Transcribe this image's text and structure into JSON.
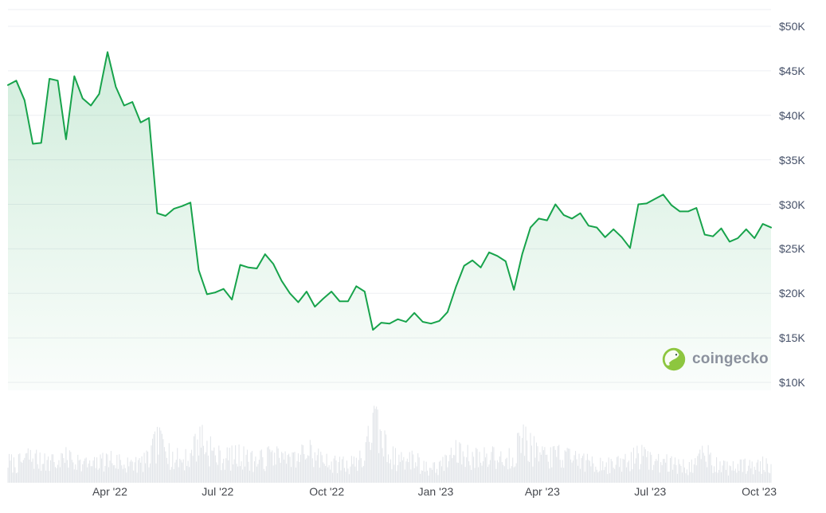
{
  "watermark": {
    "brand": "coingecko"
  },
  "colors": {
    "line": "#17a34b",
    "area_top": "rgba(25,165,80,0.20)",
    "area_bottom": "rgba(25,165,80,0.02)",
    "grid": "#edeff3",
    "volume": "#e3e6ea",
    "y_label": "#455068",
    "x_label": "#45484e",
    "logo_green": "#8dc63f",
    "watermark_text": "#8b919d"
  },
  "chart_data": {
    "type": "line",
    "title": "",
    "legend": "none",
    "grid": "horizontal",
    "y_axis_side": "right",
    "y_axis_unit": "USD thousands",
    "ylim": [
      10,
      52
    ],
    "y_ticks": [
      {
        "label": "$50K",
        "value": 50
      },
      {
        "label": "$45K",
        "value": 45
      },
      {
        "label": "$40K",
        "value": 40
      },
      {
        "label": "$35K",
        "value": 35
      },
      {
        "label": "$30K",
        "value": 30
      },
      {
        "label": "$25K",
        "value": 25
      },
      {
        "label": "$20K",
        "value": 20
      },
      {
        "label": "$15K",
        "value": 15
      },
      {
        "label": "$10K",
        "value": 10
      }
    ],
    "x_ticks": [
      {
        "label": "Apr '22",
        "date": "2022-04-01"
      },
      {
        "label": "Jul '22",
        "date": "2022-07-01"
      },
      {
        "label": "Oct '22",
        "date": "2022-10-01"
      },
      {
        "label": "Jan '23",
        "date": "2023-01-01"
      },
      {
        "label": "Apr '23",
        "date": "2023-04-01"
      },
      {
        "label": "Jul '23",
        "date": "2023-07-01"
      },
      {
        "label": "Oct '23",
        "date": "2023-10-01"
      }
    ],
    "dates": [
      "2022-01-05",
      "2022-01-12",
      "2022-01-19",
      "2022-01-26",
      "2022-02-02",
      "2022-02-09",
      "2022-02-16",
      "2022-02-23",
      "2022-03-02",
      "2022-03-09",
      "2022-03-16",
      "2022-03-23",
      "2022-03-30",
      "2022-04-06",
      "2022-04-13",
      "2022-04-20",
      "2022-04-27",
      "2022-05-04",
      "2022-05-11",
      "2022-05-18",
      "2022-05-25",
      "2022-06-01",
      "2022-06-08",
      "2022-06-15",
      "2022-06-22",
      "2022-06-29",
      "2022-07-06",
      "2022-07-13",
      "2022-07-20",
      "2022-07-27",
      "2022-08-03",
      "2022-08-10",
      "2022-08-17",
      "2022-08-24",
      "2022-08-31",
      "2022-09-07",
      "2022-09-14",
      "2022-09-21",
      "2022-09-28",
      "2022-10-05",
      "2022-10-12",
      "2022-10-19",
      "2022-10-26",
      "2022-11-02",
      "2022-11-09",
      "2022-11-16",
      "2022-11-23",
      "2022-11-30",
      "2022-12-07",
      "2022-12-14",
      "2022-12-21",
      "2022-12-28",
      "2023-01-04",
      "2023-01-11",
      "2023-01-18",
      "2023-01-25",
      "2023-02-01",
      "2023-02-08",
      "2023-02-15",
      "2023-02-22",
      "2023-03-01",
      "2023-03-08",
      "2023-03-15",
      "2023-03-22",
      "2023-03-29",
      "2023-04-05",
      "2023-04-12",
      "2023-04-19",
      "2023-04-26",
      "2023-05-03",
      "2023-05-10",
      "2023-05-17",
      "2023-05-24",
      "2023-05-31",
      "2023-06-07",
      "2023-06-14",
      "2023-06-21",
      "2023-06-28",
      "2023-07-05",
      "2023-07-12",
      "2023-07-19",
      "2023-07-26",
      "2023-08-02",
      "2023-08-09",
      "2023-08-16",
      "2023-08-23",
      "2023-08-30",
      "2023-09-06",
      "2023-09-13",
      "2023-09-20",
      "2023-09-27",
      "2023-10-04",
      "2023-10-11"
    ],
    "series": [
      {
        "name": "price_usd_thousands",
        "values": [
          43.4,
          43.9,
          41.7,
          36.8,
          36.9,
          44.1,
          43.9,
          37.3,
          44.4,
          41.9,
          41.1,
          42.4,
          47.1,
          43.2,
          41.1,
          41.5,
          39.2,
          39.7,
          29.0,
          28.7,
          29.5,
          29.8,
          30.2,
          22.6,
          19.9,
          20.1,
          20.5,
          19.3,
          23.2,
          22.9,
          22.8,
          24.4,
          23.3,
          21.4,
          20.0,
          19.0,
          20.2,
          18.5,
          19.4,
          20.2,
          19.1,
          19.1,
          20.8,
          20.2,
          15.9,
          16.7,
          16.6,
          17.1,
          16.8,
          17.8,
          16.8,
          16.6,
          16.9,
          17.9,
          20.7,
          23.1,
          23.7,
          22.9,
          24.6,
          24.2,
          23.6,
          20.4,
          24.4,
          27.4,
          28.4,
          28.2,
          30.0,
          28.8,
          28.4,
          29.0,
          27.6,
          27.4,
          26.3,
          27.2,
          26.3,
          25.1,
          30.0,
          30.1,
          30.6,
          31.1,
          29.9,
          29.2,
          29.2,
          29.6,
          26.6,
          26.4,
          27.3,
          25.8,
          26.2,
          27.2,
          26.2,
          27.8,
          27.4
        ]
      }
    ],
    "volume": {
      "name": "volume_relative",
      "values": [
        35,
        30,
        38,
        42,
        33,
        35,
        30,
        40,
        34,
        30,
        28,
        32,
        38,
        35,
        30,
        28,
        32,
        38,
        68,
        50,
        40,
        38,
        40,
        72,
        60,
        45,
        40,
        42,
        45,
        38,
        35,
        40,
        45,
        38,
        34,
        36,
        55,
        42,
        36,
        30,
        32,
        28,
        35,
        40,
        100,
        72,
        45,
        38,
        32,
        40,
        26,
        22,
        26,
        35,
        48,
        45,
        42,
        38,
        45,
        38,
        34,
        48,
        70,
        58,
        45,
        38,
        45,
        42,
        38,
        35,
        32,
        28,
        30,
        28,
        32,
        35,
        48,
        38,
        32,
        35,
        30,
        28,
        26,
        28,
        52,
        32,
        26,
        24,
        26,
        28,
        24,
        30,
        26
      ]
    }
  }
}
